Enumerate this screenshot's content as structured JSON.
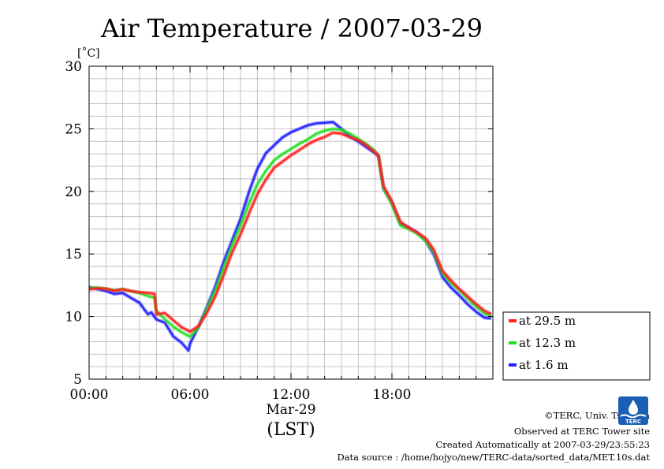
{
  "chart_data": {
    "type": "line",
    "title": "Air Temperature / 2007-03-29",
    "ylabel": "[˚C]",
    "xlabel": "(LST)",
    "x_date_label": "Mar-29",
    "ylim": [
      5,
      30
    ],
    "xlim": [
      0,
      24
    ],
    "yticks": [
      5,
      10,
      15,
      20,
      25,
      30
    ],
    "xticks": [
      {
        "value": 0,
        "label": "00:00"
      },
      {
        "value": 6,
        "label": "06:00"
      },
      {
        "value": 12,
        "label": "12:00"
      },
      {
        "value": 18,
        "label": "18:00"
      }
    ],
    "grid": true,
    "legend_position": "right",
    "series": [
      {
        "name": "at 29.5 m",
        "color": "#ff2020",
        "x": [
          0,
          0.5,
          1,
          1.5,
          2,
          2.5,
          3,
          3.5,
          3.9,
          4.0,
          4.5,
          5.0,
          5.5,
          6.0,
          6.5,
          7.0,
          7.5,
          8.0,
          8.5,
          9.0,
          9.5,
          10.0,
          10.5,
          11.0,
          11.5,
          12.0,
          12.5,
          13.0,
          13.5,
          14.0,
          14.5,
          15.0,
          15.5,
          16.0,
          16.5,
          17.0,
          17.2,
          17.5,
          18.0,
          18.5,
          19.0,
          19.5,
          20.0,
          20.5,
          21.0,
          21.5,
          22.0,
          22.5,
          23.0,
          23.5,
          23.9
        ],
        "values": [
          12.1,
          12.15,
          12.1,
          11.95,
          12.1,
          12.0,
          11.95,
          11.95,
          11.9,
          10.3,
          10.4,
          9.8,
          9.2,
          8.8,
          9.2,
          10.2,
          11.5,
          13.2,
          15.0,
          16.5,
          18.2,
          19.8,
          21.0,
          22.0,
          22.5,
          23.0,
          23.4,
          23.8,
          24.1,
          24.3,
          24.6,
          24.5,
          24.2,
          24.0,
          23.6,
          23.1,
          22.9,
          20.5,
          19.3,
          17.7,
          17.2,
          16.8,
          16.3,
          15.3,
          13.6,
          12.8,
          12.1,
          11.5,
          10.9,
          10.4,
          10.2
        ]
      },
      {
        "name": "at 12.3 m",
        "color": "#20e020",
        "x": [
          0,
          0.5,
          1,
          1.5,
          2,
          2.5,
          3,
          3.5,
          3.9,
          4.0,
          4.5,
          5.0,
          5.5,
          6.0,
          6.5,
          7.0,
          7.5,
          8.0,
          8.5,
          9.0,
          9.5,
          10.0,
          10.5,
          11.0,
          11.5,
          12.0,
          12.5,
          13.0,
          13.5,
          14.0,
          14.5,
          15.0,
          15.5,
          16.0,
          16.5,
          17.0,
          17.2,
          17.5,
          18.0,
          18.5,
          19.0,
          19.5,
          20.0,
          20.5,
          21.0,
          21.5,
          22.0,
          22.5,
          23.0,
          23.5,
          23.9
        ],
        "values": [
          12.2,
          12.2,
          12.1,
          12.0,
          12.1,
          12.0,
          11.9,
          11.7,
          11.6,
          10.6,
          9.9,
          9.3,
          8.8,
          8.4,
          9.1,
          10.5,
          12.0,
          13.8,
          15.6,
          17.2,
          19.0,
          20.6,
          21.7,
          22.6,
          23.1,
          23.5,
          23.9,
          24.2,
          24.6,
          24.8,
          24.9,
          24.8,
          24.5,
          24.1,
          23.7,
          23.2,
          22.9,
          20.3,
          19.1,
          17.4,
          17.1,
          16.7,
          16.1,
          15.1,
          13.4,
          12.6,
          12.0,
          11.3,
          10.7,
          10.2,
          10.0
        ]
      },
      {
        "name": "at 1.6 m",
        "color": "#2020ff",
        "x": [
          0,
          0.5,
          1,
          1.5,
          2,
          2.5,
          3,
          3.3,
          3.5,
          3.7,
          4.0,
          4.5,
          5.0,
          5.5,
          5.9,
          6.0,
          6.5,
          7.0,
          7.5,
          8.0,
          8.5,
          9.0,
          9.5,
          10.0,
          10.5,
          11.0,
          11.5,
          12.0,
          12.5,
          13.0,
          13.5,
          14.0,
          14.5,
          15.0,
          15.5,
          16.0,
          16.5,
          17.0,
          17.2,
          17.5,
          18.0,
          18.5,
          19.0,
          19.5,
          20.0,
          20.5,
          21.0,
          21.5,
          22.0,
          22.5,
          23.0,
          23.5,
          23.9
        ],
        "values": [
          12.3,
          12.2,
          12.1,
          11.9,
          12.0,
          11.6,
          11.2,
          10.6,
          10.2,
          10.3,
          9.7,
          9.4,
          8.3,
          7.8,
          7.2,
          7.8,
          9.2,
          10.8,
          12.5,
          14.5,
          16.2,
          17.9,
          20.0,
          21.8,
          23.0,
          23.6,
          24.2,
          24.6,
          24.9,
          25.2,
          25.4,
          25.5,
          25.6,
          25.1,
          24.5,
          24.1,
          23.6,
          23.1,
          22.8,
          20.2,
          19.0,
          17.3,
          17.0,
          16.6,
          16.0,
          14.9,
          13.2,
          12.4,
          11.8,
          11.1,
          10.5,
          10.0,
          9.9
        ]
      }
    ]
  },
  "footer": {
    "copyright": "©TERC, Univ. Tsukuba",
    "observed": "Observed at TERC Tower site",
    "created": "Created Automatically at 2007-03-29/23:55:23",
    "source": "Data source : /home/hojyo/new/TERC-data/sorted_data/MET.10s.dat"
  },
  "logo_text": "TERC"
}
